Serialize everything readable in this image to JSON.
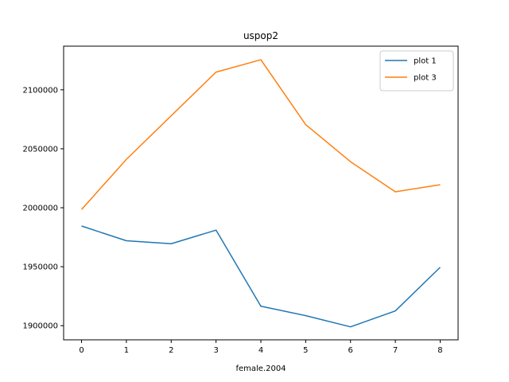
{
  "chart_data": {
    "type": "line",
    "title": "uspop2",
    "xlabel": "female.2004",
    "ylabel": "",
    "x": [
      0,
      1,
      2,
      3,
      4,
      5,
      6,
      7,
      8
    ],
    "xlim": [
      -0.4,
      8.4
    ],
    "ylim": [
      1888000,
      2137000
    ],
    "xticks": [
      0,
      1,
      2,
      3,
      4,
      5,
      6,
      7,
      8
    ],
    "yticks": [
      1900000,
      1950000,
      2000000,
      2050000,
      2100000
    ],
    "grid": false,
    "legend_position": "top-right",
    "series": [
      {
        "name": "plot 1",
        "color": "#1f77b4",
        "values": [
          1984500,
          1972000,
          1969500,
          1981000,
          1916500,
          1908500,
          1899000,
          1912500,
          1949500
        ]
      },
      {
        "name": "plot 3",
        "color": "#ff7f0e",
        "values": [
          1998500,
          2041000,
          2078000,
          2115000,
          2125500,
          2070500,
          2039000,
          2013500,
          2019500
        ]
      }
    ]
  }
}
